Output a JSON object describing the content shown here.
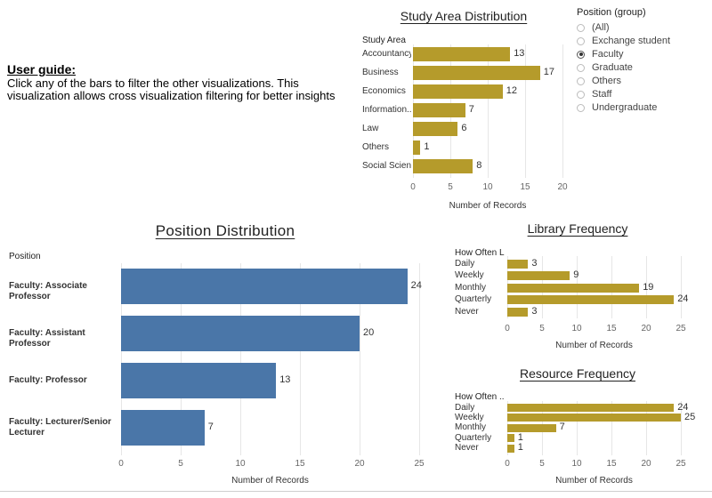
{
  "guide": {
    "title": "User guide:",
    "text": "Click any of the bars to filter the other visualizations. This visualization allows cross visualization filtering for better insights"
  },
  "colors": {
    "gold": "#b59b2b",
    "blue": "#4a76a8"
  },
  "legend": {
    "title": "Position (group)",
    "options": [
      "(All)",
      "Exchange student",
      "Faculty",
      "Graduate",
      "Others",
      "Staff",
      "Undergraduate"
    ],
    "selected": "Faculty"
  },
  "chart_data": [
    {
      "id": "study",
      "type": "bar",
      "orientation": "horizontal",
      "title": "Study Area Distribution",
      "field_header": "Study Area",
      "categories": [
        "Accountancy",
        "Business",
        "Economics",
        "Information..",
        "Law",
        "Others",
        "Social Scien.."
      ],
      "values": [
        13,
        17,
        12,
        7,
        6,
        1,
        8
      ],
      "xlabel": "Number of Records",
      "xlim": [
        0,
        20
      ],
      "ticks": [
        0,
        5,
        10,
        15,
        20
      ]
    },
    {
      "id": "position",
      "type": "bar",
      "orientation": "horizontal",
      "title": "Position Distribution",
      "field_header": "Position",
      "categories": [
        "Faculty: Associate Professor",
        "Faculty: Assistant Professor",
        "Faculty: Professor",
        "Faculty: Lecturer/Senior Lecturer"
      ],
      "values": [
        24,
        20,
        13,
        7
      ],
      "xlabel": "Number of Records",
      "xlim": [
        0,
        25
      ],
      "ticks": [
        0,
        5,
        10,
        15,
        20,
        25
      ]
    },
    {
      "id": "library",
      "type": "bar",
      "orientation": "horizontal",
      "title": "Library Frequency",
      "field_header": "How Often L",
      "categories": [
        "Daily",
        "Weekly",
        "Monthly",
        "Quarterly",
        "Never"
      ],
      "values": [
        3,
        9,
        19,
        24,
        3
      ],
      "xlabel": "Number of Records",
      "xlim": [
        0,
        25
      ],
      "ticks": [
        0,
        5,
        10,
        15,
        20,
        25
      ]
    },
    {
      "id": "resource",
      "type": "bar",
      "orientation": "horizontal",
      "title": "Resource Frequency",
      "field_header": "How Often ..",
      "categories": [
        "Daily",
        "Weekly",
        "Monthly",
        "Quarterly",
        "Never"
      ],
      "values": [
        24,
        25,
        7,
        1,
        1
      ],
      "xlabel": "Number of Records",
      "xlim": [
        0,
        25
      ],
      "ticks": [
        0,
        5,
        10,
        15,
        20,
        25
      ]
    }
  ]
}
